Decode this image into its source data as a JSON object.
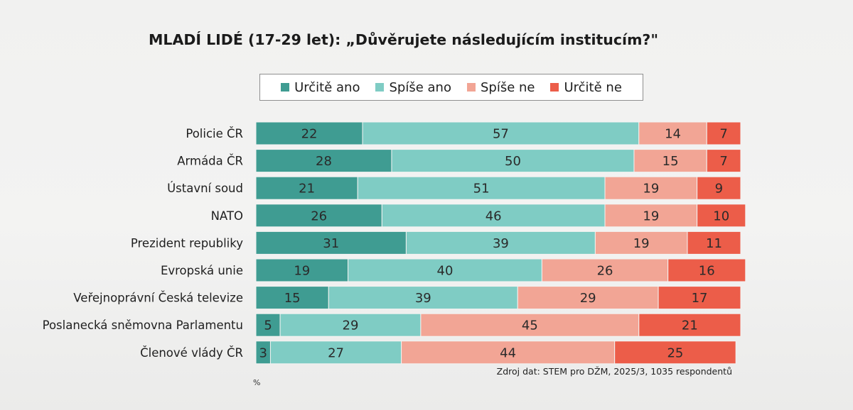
{
  "chart_data": {
    "type": "bar",
    "orientation": "horizontal",
    "stacked": true,
    "title": "MLADÍ LIDÉ (17-29 let): „Důvěrujete následujícím institucím?\"",
    "categories": [
      "Policie ČR",
      "Armáda ČR",
      "Ústavní soud",
      "NATO",
      "Prezident republiky",
      "Evropská unie",
      "Veřejnoprávní Česká televize",
      "Poslanecká sněmovna Parlamentu",
      "Členové vlády ČR"
    ],
    "series": [
      {
        "name": "Určitě ano",
        "color": "#3f9c92",
        "values": [
          22,
          28,
          21,
          26,
          31,
          19,
          15,
          5,
          3
        ]
      },
      {
        "name": "Spíše ano",
        "color": "#7fccc4",
        "values": [
          57,
          50,
          51,
          46,
          39,
          40,
          39,
          29,
          27
        ]
      },
      {
        "name": "Spíše ne",
        "color": "#f2a595",
        "values": [
          14,
          15,
          19,
          19,
          19,
          26,
          29,
          45,
          44
        ]
      },
      {
        "name": "Určitě ne",
        "color": "#ec5d49",
        "values": [
          7,
          7,
          9,
          10,
          11,
          16,
          17,
          21,
          25
        ]
      }
    ],
    "xlim": [
      0,
      100
    ],
    "unit": "%",
    "source": "Zdroj dat: STEM pro DŽM, 2025/3, 1035 respondentů"
  }
}
